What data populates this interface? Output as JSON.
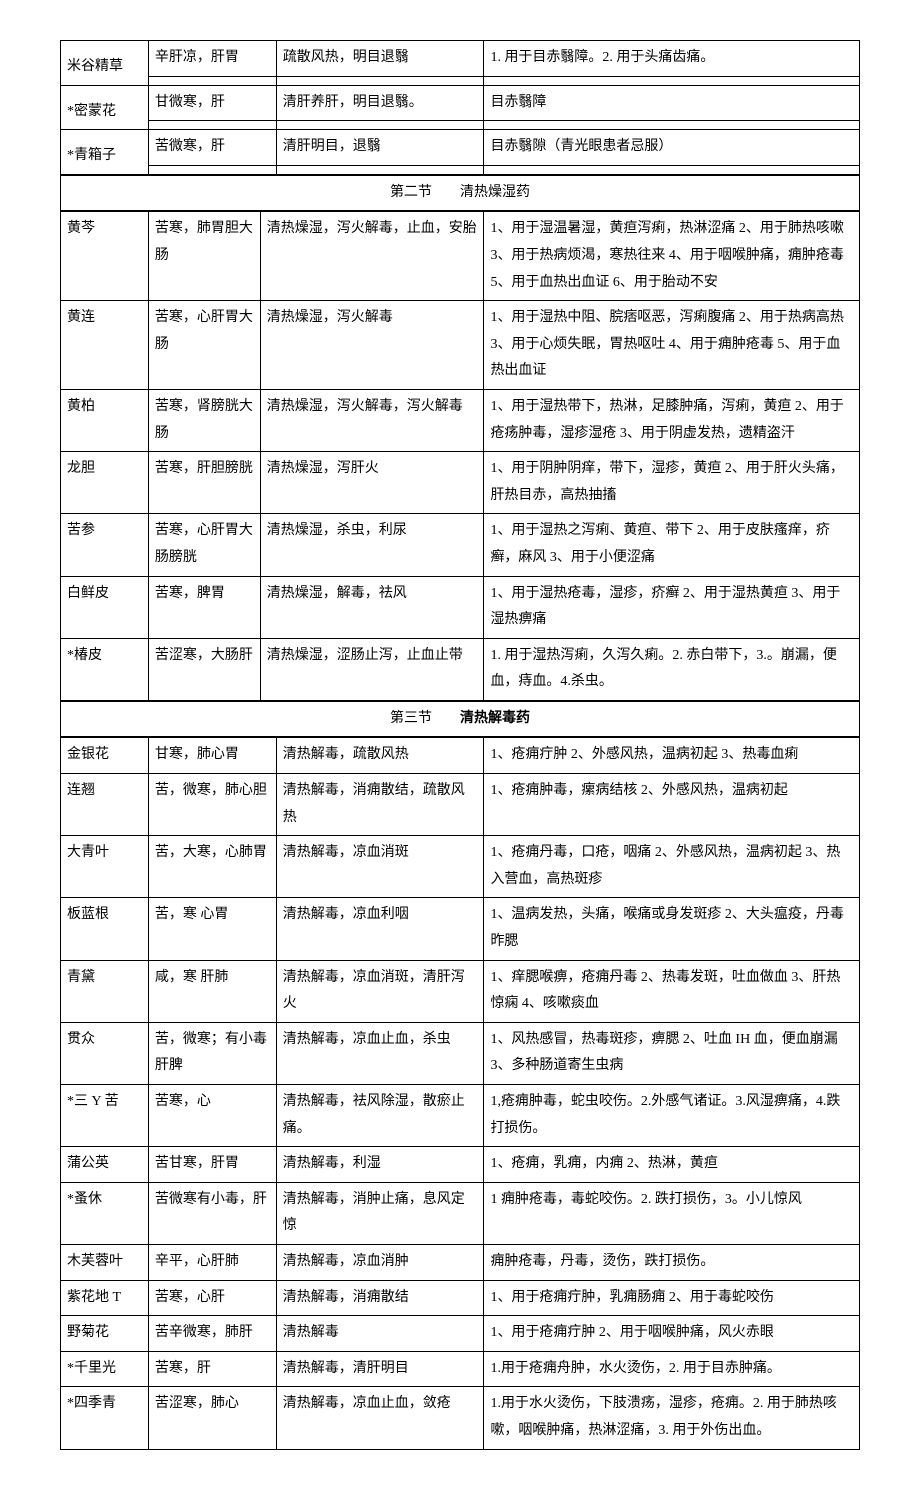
{
  "table1": {
    "rows": [
      {
        "c1": "米谷精草",
        "c2": "辛肝凉，肝胃",
        "c3": "疏散风热，明目退翳",
        "c4": "1. 用于目赤翳障。2. 用于头痛齿痛。"
      },
      {
        "c1": "*密蒙花",
        "c2": "甘微寒，肝",
        "c3": "清肝养肝，明目退翳。",
        "c4": "目赤翳障"
      },
      {
        "c1": "*青箱子",
        "c2": "苦微寒，肝",
        "c3": "清肝明目，退翳",
        "c4": "目赤翳隙（青光眼患者忌服）"
      }
    ]
  },
  "section2_title": "第二节　　清热燥湿药",
  "table2": {
    "rows": [
      {
        "c1": "黄芩",
        "c2": "苦寒，肺胃胆大肠",
        "c3": "清热燥湿，泻火解毒，止血，安胎",
        "c4": "1、用于湿温暑湿，黄疸泻痢，热淋涩痛 2、用于肺热咳嗽 3、用于热病烦渴，寒热往来 4、用于咽喉肿痛，痈肿疮毒 5、用于血热出血证 6、用于胎动不安"
      },
      {
        "c1": "黄连",
        "c2": "苦寒，心肝胃大肠",
        "c3": "清热燥湿，泻火解毒",
        "c4": "1、用于湿热中阻、脘痞呕恶，泻痢腹痛 2、用于热病高热 3、用于心烦失眠，胃热呕吐 4、用于痈肿疮毒 5、用于血热出血证"
      },
      {
        "c1": "黄柏",
        "c2": "苦寒，肾膀胱大肠",
        "c3": "清热燥湿，泻火解毒，泻火解毒",
        "c4": "1、用于湿热带下，热淋，足膝肿痛，泻痢，黄疸 2、用于疮疡肿毒，湿疹湿疮 3、用于阴虚发热，遗精盗汗"
      },
      {
        "c1": "龙胆",
        "c2": "苦寒，肝胆膀胱",
        "c3": "清热燥湿，泻肝火",
        "c4": "1、用于阴肿阴痒，带下，湿疹，黄疸 2、用于肝火头痛，肝热目赤，高热抽搐"
      },
      {
        "c1": "苦参",
        "c2": "苦寒，心肝胃大肠膀胱",
        "c3": "清热燥湿，杀虫，利尿",
        "c4": "1、用于湿热之泻痢、黄疸、带下 2、用于皮肤瘙痒，疥癣，麻风 3、用于小便涩痛"
      },
      {
        "c1": "白鲜皮",
        "c2": "苦寒，脾胃",
        "c3": "清热燥湿，解毒，祛风",
        "c4": "1、用于湿热疮毒，湿疹，疥癣 2、用于湿热黄疸 3、用于湿热痹痛"
      },
      {
        "c1": "*椿皮",
        "c2": "苦涩寒，大肠肝",
        "c3": "清热燥湿，涩肠止泻，止血止带",
        "c4": "1. 用于湿热泻痢，久泻久痢。2. 赤白带下，3.。崩漏，便血，痔血。4.杀虫。"
      }
    ]
  },
  "section3_title": "第三节　　清热解毒药",
  "table3": {
    "rows": [
      {
        "c1": "金银花",
        "c2": "甘寒，肺心胃",
        "c3": "清热解毒，疏散风热",
        "c4": "1、疮痈疔肿 2、外感风热，温病初起 3、热毒血痢"
      },
      {
        "c1": "连翘",
        "c2": "苦，微寒，肺心胆",
        "c3": "清热解毒，消痈散结，疏散风热",
        "c4": "1、疮痈肿毒，瘰病结核 2、外感风热，温病初起"
      },
      {
        "c1": "大青叶",
        "c2": "苦，大寒，心肺胃",
        "c3": "清热解毒，凉血消斑",
        "c4": "1、疮痈丹毒，口疮，咽痛 2、外感风热，温病初起 3、热入营血，高热斑疹"
      },
      {
        "c1": "板蓝根",
        "c2": "苦，寒 心胃",
        "c3": "清热解毒，凉血利咽",
        "c4": "1、温病发热，头痛，喉痛或身发斑疹 2、大头瘟疫，丹毒昨腮"
      },
      {
        "c1": "青黛",
        "c2": "咸，寒 肝肺",
        "c3": "清热解毒，凉血消斑，清肝泻火",
        "c4": "1、痒腮喉痹，疮痈丹毒 2、热毒发斑，吐血做血 3、肝热惊痫 4、咳嗽痰血"
      },
      {
        "c1": "贯众",
        "c2": "苦，微寒；有小毒 肝脾",
        "c3": "清热解毒，凉血止血，杀虫",
        "c4": "1、风热感冒，热毒斑疹，痹腮 2、吐血 IH 血，便血崩漏 3、多种肠道寄生虫病"
      },
      {
        "c1": "*三 Y 苦",
        "c2": "苦寒，心",
        "c3": "清热解毒，祛风除湿，散瘀止痛。",
        "c4": "1,疮痈肿毒，蛇虫咬伤。2.外感气诸证。3.风湿痹痛，4.跌打损伤。"
      },
      {
        "c1": "蒲公英",
        "c2": "苦甘寒，肝胃",
        "c3": "清热解毒，利湿",
        "c4": "1、疮痈，乳痈，内痈 2、热淋，黄疸"
      },
      {
        "c1": "*蚤休",
        "c2": "苦微寒有小毒，肝",
        "c3": "清热解毒，消肿止痛，息风定惊",
        "c4": "1 痈肿疮毒，毒蛇咬伤。2. 跌打损伤，3。小儿惊风"
      },
      {
        "c1": "木芙蓉叶",
        "c2": "辛平，心肝肺",
        "c3": "清热解毒，凉血消肿",
        "c4": "痈肿疮毒，丹毒，烫伤，跌打损伤。"
      },
      {
        "c1": "紫花地 T",
        "c2": "苦寒，心肝",
        "c3": "清热解毒，消痈散结",
        "c4": "1、用于疮痈疔肿，乳痈肠痈 2、用于毒蛇咬伤"
      },
      {
        "c1": "野菊花",
        "c2": "苦辛微寒，肺肝",
        "c3": "清热解毒",
        "c4": "1、用于疮痈疔肿 2、用于咽喉肿痛，风火赤眼"
      },
      {
        "c1": "*千里光",
        "c2": "苦寒，肝",
        "c3": "清热解毒，清肝明目",
        "c4": "1.用于疮痈舟肿，水火烫伤，2. 用于目赤肿痛。"
      },
      {
        "c1": "*四季青",
        "c2": "苦涩寒，肺心",
        "c3": "清热解毒，凉血止血，敛疮",
        "c4": "1.用于水火烫伤，下肢溃疡，湿疹，疮痈。2. 用于肺热咳嗽，咽喉肿痛，热淋涩痛，3. 用于外伤出血。"
      }
    ]
  }
}
